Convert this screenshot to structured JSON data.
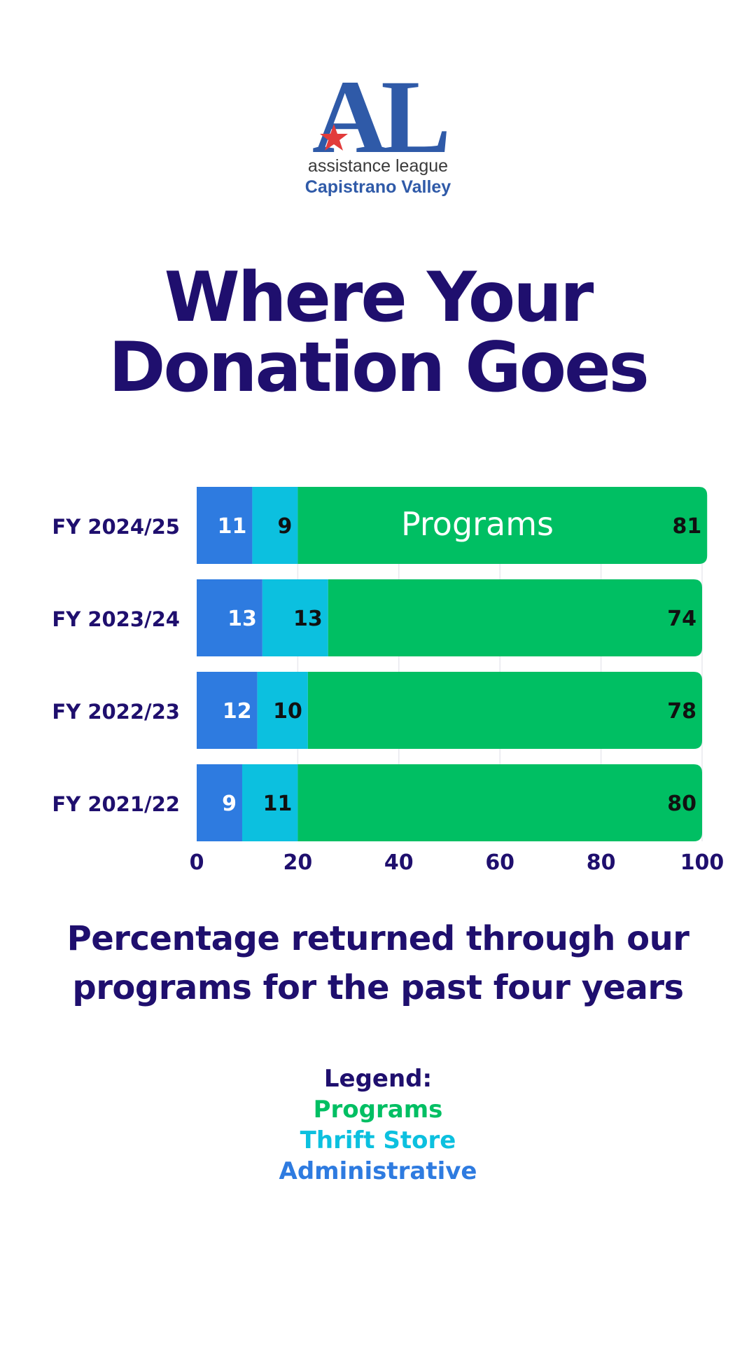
{
  "logo": {
    "monogram": "AL",
    "line1": "assistance league",
    "line2": "Capistrano Valley",
    "brand_color": "#2f5aa8",
    "star_color": "#e23b3b",
    "text_color": "#3a3a3a"
  },
  "title": {
    "line1": "Where Your",
    "line2": "Donation Goes"
  },
  "subtitle": {
    "line1": "Percentage returned through our",
    "line2": "programs for the past four years"
  },
  "legend": {
    "heading": "Legend:",
    "items": [
      {
        "label": "Programs",
        "color": "#00bf63"
      },
      {
        "label": "Thrift Store",
        "color": "#0cc0df"
      },
      {
        "label": "Administrative",
        "color": "#2e7be0"
      }
    ]
  },
  "colors": {
    "navy": "#1f0f6e",
    "programs": "#00bf63",
    "thrift": "#0cc0df",
    "admin": "#2e7be0"
  },
  "chart_data": {
    "type": "bar",
    "orientation": "horizontal",
    "stacked": true,
    "categories": [
      "FY 2024/25",
      "FY 2023/24",
      "FY 2022/23",
      "FY 2021/22"
    ],
    "series": [
      {
        "name": "Administrative",
        "values": [
          11,
          13,
          12,
          9
        ],
        "color": "#2e7be0"
      },
      {
        "name": "Thrift Store",
        "values": [
          9,
          13,
          10,
          11
        ],
        "color": "#0cc0df"
      },
      {
        "name": "Programs",
        "values": [
          81,
          74,
          78,
          80
        ],
        "color": "#00bf63"
      }
    ],
    "bar_annotation": {
      "category": "FY 2024/25",
      "text": "Programs"
    },
    "x_ticks": [
      0,
      20,
      40,
      60,
      80,
      100
    ],
    "xlim": [
      0,
      100
    ],
    "grid": true
  }
}
